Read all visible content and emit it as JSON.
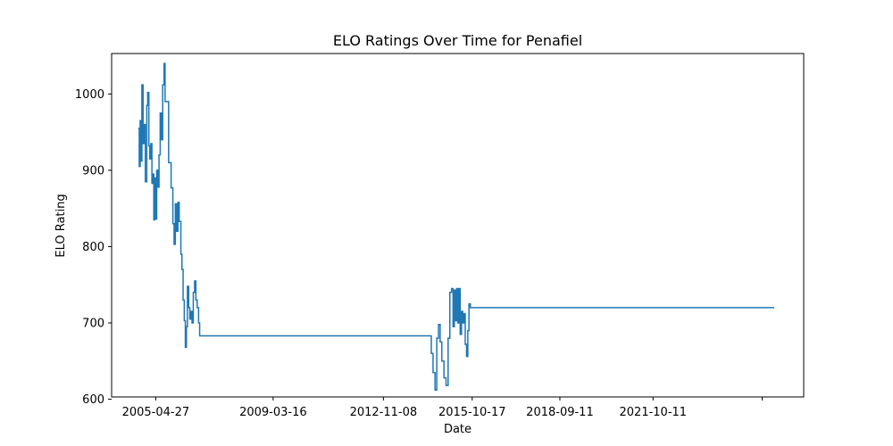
{
  "chart_data": {
    "type": "line",
    "title": "ELO Ratings Over Time for Penafiel",
    "xlabel": "Date",
    "ylabel": "ELO Rating",
    "xlim": [
      "2003-11-11",
      "2026-10-06"
    ],
    "ylim": [
      603,
      1053
    ],
    "x_ticks": [
      {
        "date": "2005-04-27",
        "label": "2005-04-27"
      },
      {
        "date": "2009-03-16",
        "label": "2009-03-16"
      },
      {
        "date": "2012-11-08",
        "label": "2012-11-08"
      },
      {
        "date": "2015-10-17",
        "label": "2015-10-17"
      },
      {
        "date": "2018-09-11",
        "label": "2018-09-11"
      },
      {
        "date": "2021-10-11",
        "label": "2021-10-11"
      },
      {
        "date": "2025-05-22",
        "label": ""
      }
    ],
    "y_ticks": [
      600,
      700,
      800,
      900,
      1000
    ],
    "grid": false,
    "line_color": "#1f77b4",
    "series": [
      {
        "step": "post",
        "points": [
          [
            "2004-09-28",
            955
          ],
          [
            "2004-10-10",
            905
          ],
          [
            "2004-10-21",
            965
          ],
          [
            "2004-11-01",
            912
          ],
          [
            "2004-11-11",
            1012
          ],
          [
            "2004-11-25",
            935
          ],
          [
            "2004-12-09",
            960
          ],
          [
            "2004-12-22",
            885
          ],
          [
            "2005-01-09",
            985
          ],
          [
            "2005-01-20",
            1002
          ],
          [
            "2005-02-03",
            932
          ],
          [
            "2005-02-14",
            915
          ],
          [
            "2005-02-27",
            935
          ],
          [
            "2005-03-12",
            883
          ],
          [
            "2005-03-25",
            895
          ],
          [
            "2005-04-04",
            835
          ],
          [
            "2005-04-15",
            890
          ],
          [
            "2005-04-25",
            836
          ],
          [
            "2005-05-09",
            900
          ],
          [
            "2005-05-23",
            878
          ],
          [
            "2005-06-06",
            920
          ],
          [
            "2005-06-20",
            975
          ],
          [
            "2005-07-04",
            940
          ],
          [
            "2005-07-20",
            1012
          ],
          [
            "2005-08-06",
            1040
          ],
          [
            "2005-08-18",
            990
          ],
          [
            "2005-09-30",
            910
          ],
          [
            "2005-10-30",
            877
          ],
          [
            "2005-11-20",
            830
          ],
          [
            "2005-12-05",
            803
          ],
          [
            "2005-12-20",
            856
          ],
          [
            "2006-01-05",
            820
          ],
          [
            "2006-01-20",
            858
          ],
          [
            "2006-02-05",
            833
          ],
          [
            "2006-02-25",
            790
          ],
          [
            "2006-03-10",
            770
          ],
          [
            "2006-03-24",
            730
          ],
          [
            "2006-04-07",
            703
          ],
          [
            "2006-04-20",
            668
          ],
          [
            "2006-05-03",
            695
          ],
          [
            "2006-05-15",
            748
          ],
          [
            "2006-05-30",
            720
          ],
          [
            "2006-06-13",
            705
          ],
          [
            "2006-06-27",
            715
          ],
          [
            "2006-07-10",
            700
          ],
          [
            "2006-07-25",
            740
          ],
          [
            "2006-08-10",
            755
          ],
          [
            "2006-08-25",
            730
          ],
          [
            "2006-09-10",
            720
          ],
          [
            "2006-09-27",
            700
          ],
          [
            "2006-10-10",
            683
          ],
          [
            "2014-05-15",
            683
          ],
          [
            "2014-06-10",
            660
          ],
          [
            "2014-07-01",
            635
          ],
          [
            "2014-07-25",
            612
          ],
          [
            "2014-08-15",
            680
          ],
          [
            "2014-09-05",
            698
          ],
          [
            "2014-09-25",
            675
          ],
          [
            "2014-10-15",
            650
          ],
          [
            "2014-11-10",
            628
          ],
          [
            "2014-12-05",
            618
          ],
          [
            "2014-12-30",
            680
          ],
          [
            "2015-01-20",
            740
          ],
          [
            "2015-02-10",
            745
          ],
          [
            "2015-02-28",
            695
          ],
          [
            "2015-03-15",
            743
          ],
          [
            "2015-03-30",
            703
          ],
          [
            "2015-04-12",
            745
          ],
          [
            "2015-04-25",
            700
          ],
          [
            "2015-05-10",
            745
          ],
          [
            "2015-05-25",
            685
          ],
          [
            "2015-06-10",
            715
          ],
          [
            "2015-06-25",
            700
          ],
          [
            "2015-07-10",
            712
          ],
          [
            "2015-07-25",
            672
          ],
          [
            "2015-08-10",
            656
          ],
          [
            "2015-08-25",
            690
          ],
          [
            "2015-09-08",
            725
          ],
          [
            "2015-09-25",
            720
          ],
          [
            "2025-10-15",
            720
          ]
        ]
      }
    ]
  }
}
